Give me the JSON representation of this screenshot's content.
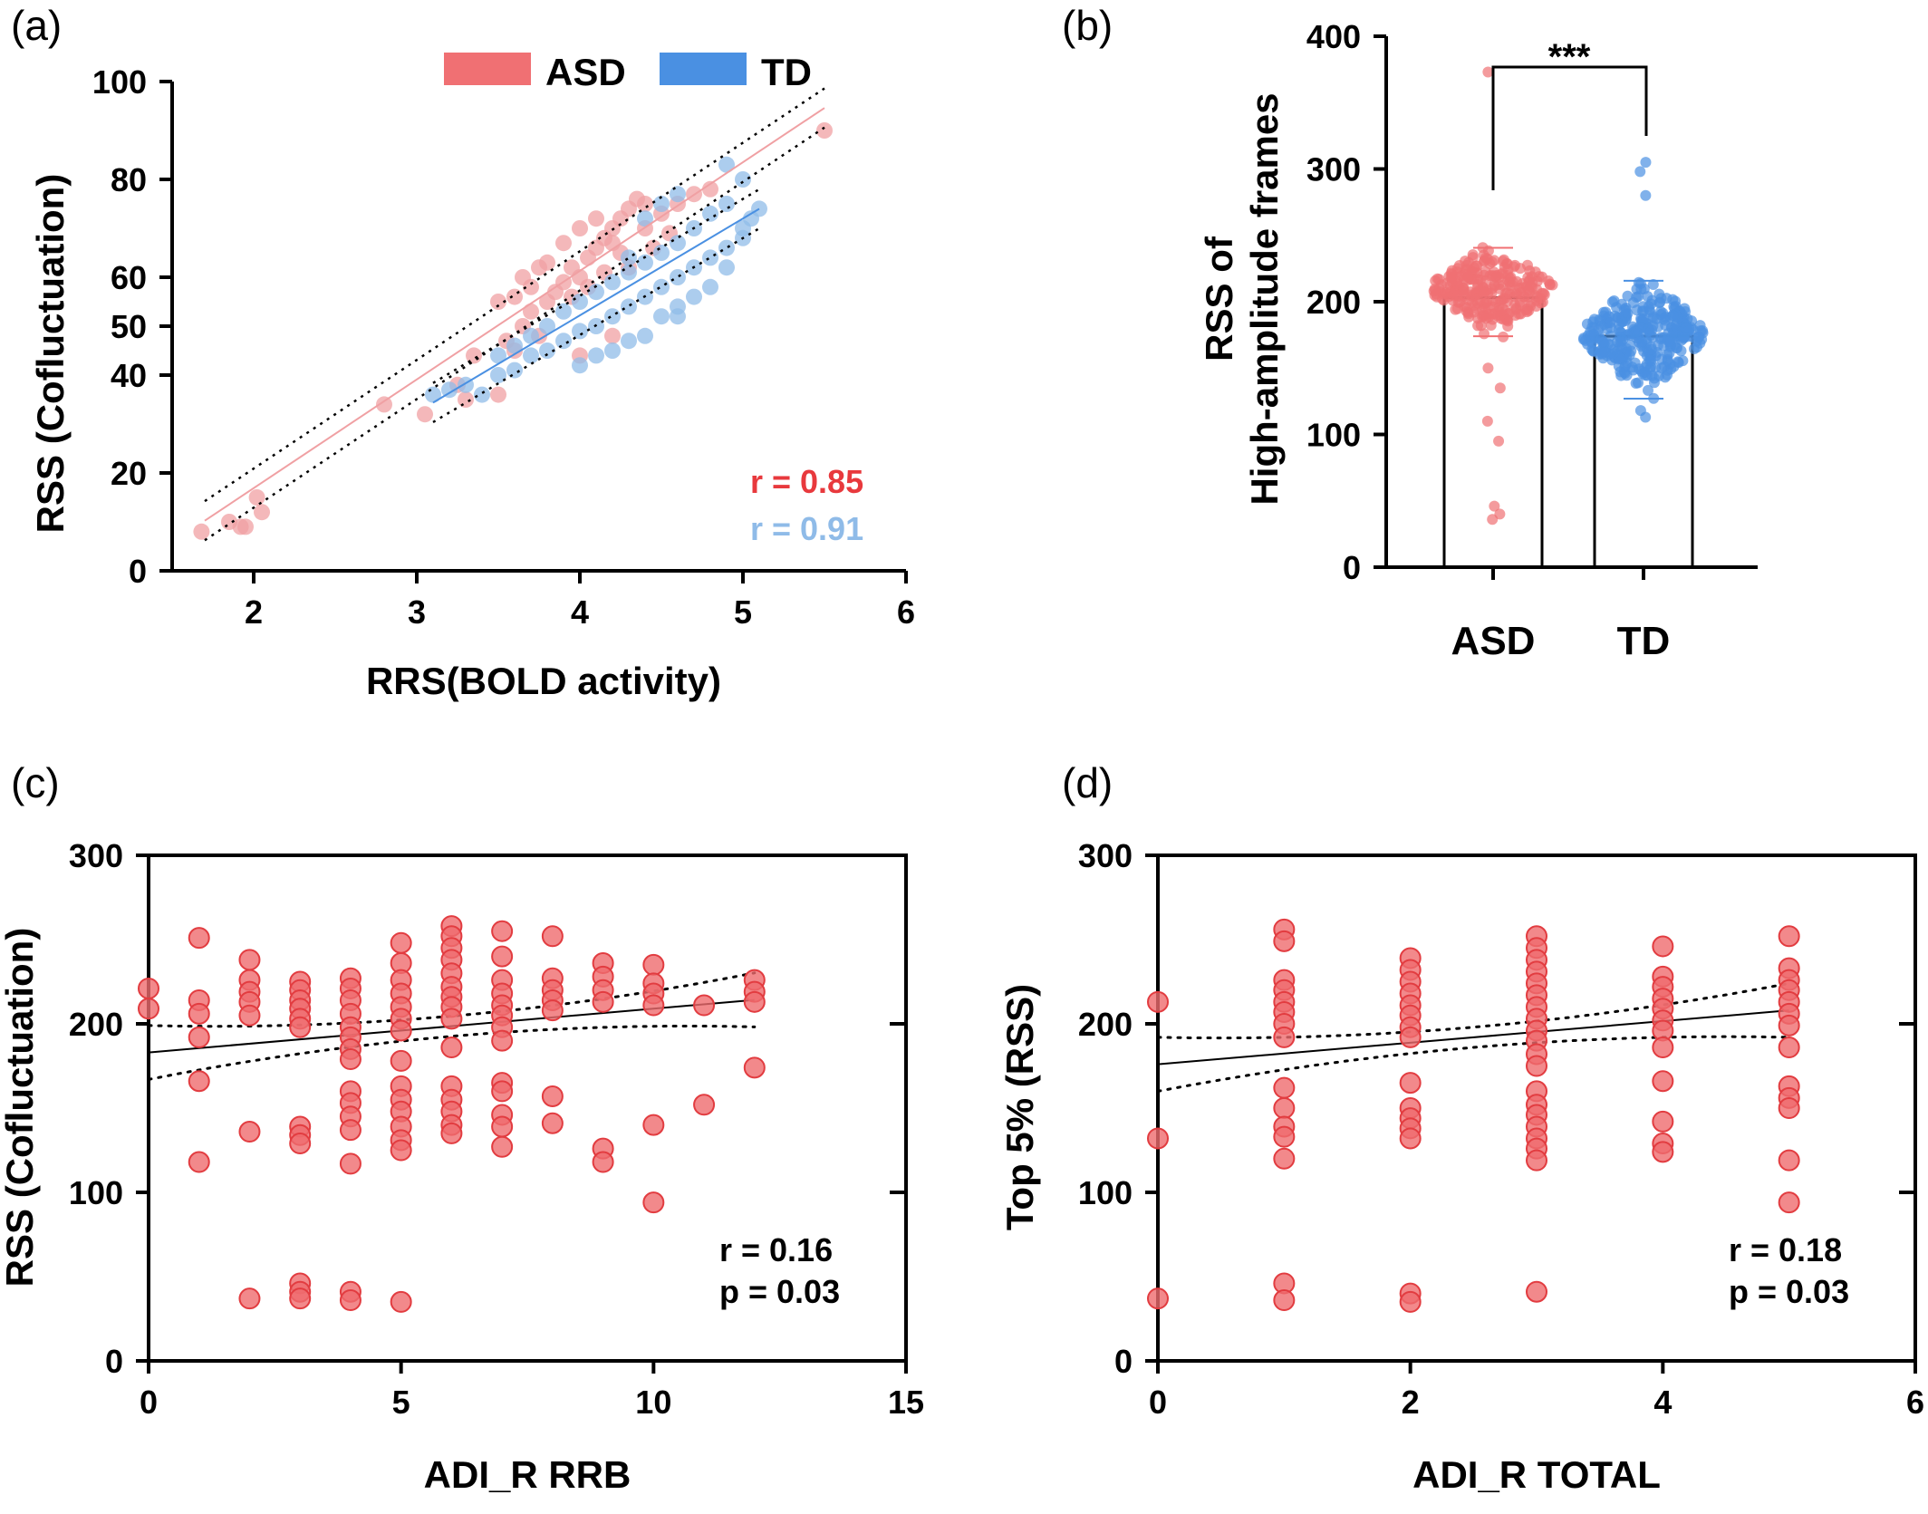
{
  "colors": {
    "asd": "#f07073",
    "asd_light": "#f0a0a3",
    "td": "#4a90e2",
    "td_light": "#90bce8",
    "overlap": "#7a6a9a",
    "red_point": "#ef6b6e",
    "red_stroke": "#e23c40",
    "stat_asd": "#e8393d",
    "stat_td": "#8fbbe8"
  },
  "chart_data": [
    {
      "panel": "(a)",
      "type": "scatter",
      "xlabel": "RRS(BOLD activity)",
      "ylabel": "RSS (Cofluctuation)",
      "xlim": [
        1.5,
        6
      ],
      "ylim": [
        0,
        100
      ],
      "xticks": [
        "2",
        "3",
        "4",
        "5",
        "6"
      ],
      "yticks": [
        "0",
        "20",
        "40",
        "50",
        "60",
        "80",
        "100"
      ],
      "legend_position": "top",
      "legend": [
        "ASD",
        "TD"
      ],
      "grid": false,
      "annotations": [
        "r = 0.85",
        "r = 0.91"
      ],
      "series": [
        {
          "name": "ASD",
          "fit": {
            "slope": 22.2,
            "intercept": -27.5,
            "x_range": [
              1.7,
              5.5
            ]
          },
          "points": [
            [
              1.68,
              8
            ],
            [
              1.85,
              10
            ],
            [
              1.92,
              9
            ],
            [
              1.95,
              9
            ],
            [
              2.02,
              15
            ],
            [
              2.05,
              12
            ],
            [
              2.8,
              34
            ],
            [
              3.05,
              32
            ],
            [
              3.25,
              38
            ],
            [
              3.3,
              35
            ],
            [
              3.35,
              44
            ],
            [
              3.5,
              36
            ],
            [
              3.55,
              47
            ],
            [
              3.6,
              45
            ],
            [
              3.65,
              50
            ],
            [
              3.7,
              53
            ],
            [
              3.75,
              48
            ],
            [
              3.8,
              55
            ],
            [
              3.85,
              57
            ],
            [
              3.9,
              59
            ],
            [
              3.95,
              62
            ],
            [
              4.0,
              60
            ],
            [
              4.05,
              64
            ],
            [
              4.1,
              66
            ],
            [
              4.15,
              68
            ],
            [
              4.2,
              70
            ],
            [
              4.25,
              72
            ],
            [
              4.3,
              74
            ],
            [
              4.35,
              76
            ],
            [
              4.4,
              75
            ],
            [
              3.8,
              63
            ],
            [
              3.9,
              67
            ],
            [
              4.0,
              70
            ],
            [
              4.1,
              72
            ],
            [
              4.2,
              67
            ],
            [
              4.3,
              62
            ],
            [
              4.4,
              70
            ],
            [
              4.5,
              73
            ],
            [
              4.6,
              75
            ],
            [
              4.7,
              77
            ],
            [
              4.8,
              78
            ],
            [
              3.95,
              56
            ],
            [
              4.05,
              58
            ],
            [
              4.15,
              61
            ],
            [
              4.25,
              65
            ],
            [
              3.7,
              58
            ],
            [
              3.75,
              62
            ],
            [
              3.6,
              56
            ],
            [
              3.65,
              60
            ],
            [
              3.5,
              55
            ],
            [
              4.45,
              66
            ],
            [
              4.55,
              69
            ],
            [
              5.5,
              90
            ],
            [
              4.0,
              44
            ],
            [
              4.2,
              48
            ]
          ]
        },
        {
          "name": "TD",
          "fit": {
            "slope": 19.8,
            "intercept": -27.0,
            "x_range": [
              3.1,
              5.1
            ]
          },
          "points": [
            [
              3.1,
              36
            ],
            [
              3.2,
              37
            ],
            [
              3.3,
              38
            ],
            [
              3.4,
              36
            ],
            [
              3.5,
              40
            ],
            [
              3.6,
              41
            ],
            [
              3.7,
              44
            ],
            [
              3.8,
              45
            ],
            [
              3.9,
              47
            ],
            [
              4.0,
              49
            ],
            [
              4.1,
              50
            ],
            [
              4.2,
              52
            ],
            [
              4.3,
              54
            ],
            [
              4.4,
              56
            ],
            [
              4.5,
              58
            ],
            [
              4.6,
              60
            ],
            [
              4.7,
              62
            ],
            [
              4.8,
              64
            ],
            [
              4.9,
              66
            ],
            [
              5.0,
              68
            ],
            [
              5.05,
              72
            ],
            [
              5.1,
              74
            ],
            [
              3.9,
              53
            ],
            [
              4.0,
              55
            ],
            [
              4.1,
              57
            ],
            [
              4.2,
              59
            ],
            [
              4.3,
              61
            ],
            [
              4.4,
              63
            ],
            [
              4.5,
              65
            ],
            [
              4.6,
              67
            ],
            [
              4.7,
              70
            ],
            [
              4.8,
              73
            ],
            [
              4.9,
              75
            ],
            [
              5.0,
              80
            ],
            [
              4.9,
              83
            ],
            [
              4.6,
              77
            ],
            [
              4.5,
              75
            ],
            [
              4.4,
              72
            ],
            [
              4.2,
              45
            ],
            [
              4.3,
              47
            ],
            [
              4.5,
              52
            ],
            [
              4.6,
              54
            ],
            [
              4.7,
              56
            ],
            [
              3.8,
              50
            ],
            [
              3.7,
              48
            ],
            [
              3.6,
              46
            ],
            [
              3.5,
              44
            ],
            [
              4.1,
              44
            ],
            [
              4.0,
              42
            ],
            [
              4.3,
              64
            ],
            [
              4.8,
              58
            ],
            [
              4.9,
              62
            ],
            [
              5.0,
              70
            ],
            [
              4.6,
              52
            ],
            [
              4.4,
              48
            ]
          ]
        }
      ]
    },
    {
      "panel": "(b)",
      "type": "bar",
      "categories": [
        "ASD",
        "TD"
      ],
      "values": [
        203,
        174
      ],
      "ylabel_lines": [
        "RSS of",
        "High-amplitude frames"
      ],
      "ylim": [
        0,
        400
      ],
      "yticks": [
        "0",
        "100",
        "200",
        "300",
        "400"
      ],
      "significance": "***",
      "grid": false
    },
    {
      "panel": "(c)",
      "type": "scatter",
      "xlabel": "ADI_R RRB",
      "ylabel": "RSS (Cofluctuation)",
      "xlim": [
        0,
        15
      ],
      "ylim": [
        0,
        300
      ],
      "xticks": [
        "0",
        "5",
        "10",
        "15"
      ],
      "yticks": [
        "0",
        "100",
        "200",
        "300"
      ],
      "annotations": [
        "r = 0.16",
        "p = 0.03"
      ],
      "fit": {
        "slope": 2.6,
        "intercept": 183,
        "x_range": [
          0,
          12
        ]
      },
      "points": [
        [
          0,
          221
        ],
        [
          0,
          209
        ],
        [
          1,
          251
        ],
        [
          1,
          214
        ],
        [
          1,
          206
        ],
        [
          1,
          192
        ],
        [
          1,
          166
        ],
        [
          1,
          118
        ],
        [
          2,
          238
        ],
        [
          2,
          226
        ],
        [
          2,
          219
        ],
        [
          2,
          213
        ],
        [
          2,
          205
        ],
        [
          2,
          136
        ],
        [
          2,
          37
        ],
        [
          3,
          225
        ],
        [
          3,
          220
        ],
        [
          3,
          214
        ],
        [
          3,
          209
        ],
        [
          3,
          203
        ],
        [
          3,
          198
        ],
        [
          3,
          139
        ],
        [
          3,
          134
        ],
        [
          3,
          129
        ],
        [
          3,
          46
        ],
        [
          3,
          41
        ],
        [
          3,
          37
        ],
        [
          4,
          227
        ],
        [
          4,
          221
        ],
        [
          4,
          214
        ],
        [
          4,
          206
        ],
        [
          4,
          198
        ],
        [
          4,
          192
        ],
        [
          4,
          185
        ],
        [
          4,
          179
        ],
        [
          4,
          160
        ],
        [
          4,
          153
        ],
        [
          4,
          145
        ],
        [
          4,
          137
        ],
        [
          4,
          117
        ],
        [
          4,
          41
        ],
        [
          4,
          36
        ],
        [
          5,
          248
        ],
        [
          5,
          236
        ],
        [
          5,
          226
        ],
        [
          5,
          218
        ],
        [
          5,
          210
        ],
        [
          5,
          203
        ],
        [
          5,
          196
        ],
        [
          5,
          178
        ],
        [
          5,
          163
        ],
        [
          5,
          155
        ],
        [
          5,
          148
        ],
        [
          5,
          139
        ],
        [
          5,
          131
        ],
        [
          5,
          125
        ],
        [
          5,
          35
        ],
        [
          6,
          258
        ],
        [
          6,
          252
        ],
        [
          6,
          245
        ],
        [
          6,
          238
        ],
        [
          6,
          230
        ],
        [
          6,
          222
        ],
        [
          6,
          216
        ],
        [
          6,
          210
        ],
        [
          6,
          203
        ],
        [
          6,
          186
        ],
        [
          6,
          163
        ],
        [
          6,
          155
        ],
        [
          6,
          148
        ],
        [
          6,
          140
        ],
        [
          6,
          135
        ],
        [
          7,
          255
        ],
        [
          7,
          240
        ],
        [
          7,
          226
        ],
        [
          7,
          218
        ],
        [
          7,
          211
        ],
        [
          7,
          205
        ],
        [
          7,
          198
        ],
        [
          7,
          190
        ],
        [
          7,
          165
        ],
        [
          7,
          160
        ],
        [
          7,
          146
        ],
        [
          7,
          139
        ],
        [
          7,
          127
        ],
        [
          8,
          252
        ],
        [
          8,
          227
        ],
        [
          8,
          220
        ],
        [
          8,
          214
        ],
        [
          8,
          208
        ],
        [
          8,
          157
        ],
        [
          8,
          141
        ],
        [
          9,
          236
        ],
        [
          9,
          228
        ],
        [
          9,
          220
        ],
        [
          9,
          213
        ],
        [
          9,
          126
        ],
        [
          9,
          118
        ],
        [
          10,
          235
        ],
        [
          10,
          224
        ],
        [
          10,
          218
        ],
        [
          10,
          211
        ],
        [
          10,
          140
        ],
        [
          10,
          94
        ],
        [
          11,
          211
        ],
        [
          11,
          152
        ],
        [
          12,
          226
        ],
        [
          12,
          219
        ],
        [
          12,
          213
        ],
        [
          12,
          174
        ]
      ]
    },
    {
      "panel": "(d)",
      "type": "scatter",
      "xlabel": "ADI_R TOTAL",
      "ylabel": "Top 5% (RSS)",
      "xlim": [
        0,
        6
      ],
      "ylim": [
        0,
        300
      ],
      "xticks": [
        "0",
        "2",
        "4",
        "6"
      ],
      "yticks": [
        "0",
        "100",
        "200",
        "300"
      ],
      "annotations": [
        "r = 0.18",
        "p = 0.03"
      ],
      "fit": {
        "slope": 6.4,
        "intercept": 176,
        "x_range": [
          0,
          5
        ]
      },
      "points": [
        [
          0,
          213
        ],
        [
          0,
          132
        ],
        [
          0,
          37
        ],
        [
          1,
          256
        ],
        [
          1,
          249
        ],
        [
          1,
          226
        ],
        [
          1,
          220
        ],
        [
          1,
          213
        ],
        [
          1,
          207
        ],
        [
          1,
          200
        ],
        [
          1,
          192
        ],
        [
          1,
          162
        ],
        [
          1,
          150
        ],
        [
          1,
          139
        ],
        [
          1,
          133
        ],
        [
          1,
          120
        ],
        [
          1,
          46
        ],
        [
          1,
          36
        ],
        [
          2,
          239
        ],
        [
          2,
          232
        ],
        [
          2,
          225
        ],
        [
          2,
          218
        ],
        [
          2,
          211
        ],
        [
          2,
          205
        ],
        [
          2,
          198
        ],
        [
          2,
          192
        ],
        [
          2,
          165
        ],
        [
          2,
          150
        ],
        [
          2,
          144
        ],
        [
          2,
          138
        ],
        [
          2,
          132
        ],
        [
          2,
          40
        ],
        [
          2,
          35
        ],
        [
          3,
          252
        ],
        [
          3,
          245
        ],
        [
          3,
          238
        ],
        [
          3,
          231
        ],
        [
          3,
          224
        ],
        [
          3,
          217
        ],
        [
          3,
          210
        ],
        [
          3,
          203
        ],
        [
          3,
          196
        ],
        [
          3,
          190
        ],
        [
          3,
          182
        ],
        [
          3,
          175
        ],
        [
          3,
          160
        ],
        [
          3,
          152
        ],
        [
          3,
          146
        ],
        [
          3,
          139
        ],
        [
          3,
          132
        ],
        [
          3,
          126
        ],
        [
          3,
          119
        ],
        [
          3,
          41
        ],
        [
          4,
          246
        ],
        [
          4,
          228
        ],
        [
          4,
          222
        ],
        [
          4,
          215
        ],
        [
          4,
          209
        ],
        [
          4,
          202
        ],
        [
          4,
          196
        ],
        [
          4,
          186
        ],
        [
          4,
          166
        ],
        [
          4,
          142
        ],
        [
          4,
          129
        ],
        [
          4,
          124
        ],
        [
          5,
          252
        ],
        [
          5,
          233
        ],
        [
          5,
          226
        ],
        [
          5,
          220
        ],
        [
          5,
          213
        ],
        [
          5,
          206
        ],
        [
          5,
          199
        ],
        [
          5,
          186
        ],
        [
          5,
          163
        ],
        [
          5,
          156
        ],
        [
          5,
          150
        ],
        [
          5,
          119
        ],
        [
          5,
          94
        ]
      ]
    }
  ]
}
